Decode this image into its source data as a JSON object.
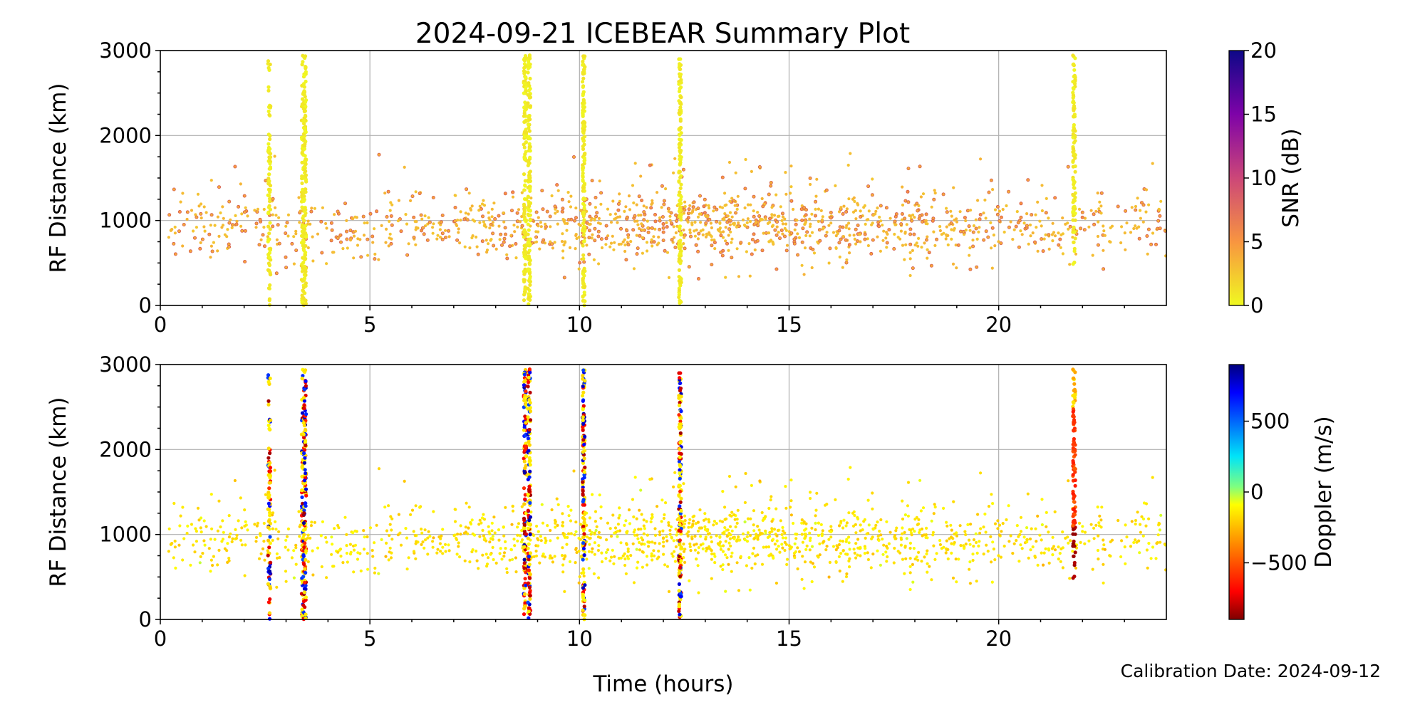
{
  "figure": {
    "title": "2024-09-21 ICEBEAR Summary Plot",
    "footer": "Calibration Date: 2024-09-12"
  },
  "chart_data": [
    {
      "type": "scatter",
      "id": "snr",
      "title": "",
      "xlabel": "",
      "ylabel": "RF Distance (km)",
      "xlim": [
        0,
        24
      ],
      "ylim": [
        0,
        3000
      ],
      "xticks": [
        "0",
        "5",
        "10",
        "15",
        "20"
      ],
      "xtick_values": [
        0,
        5,
        10,
        15,
        20
      ],
      "yticks": [
        "0",
        "1000",
        "2000",
        "3000"
      ],
      "ytick_values": [
        0,
        1000,
        2000,
        3000
      ],
      "grid": true,
      "color_variable": {
        "label": "SNR (dB)",
        "range": [
          0,
          20
        ],
        "ticks": [
          "0",
          "5",
          "10",
          "15",
          "20"
        ],
        "tick_values": [
          0,
          5,
          10,
          15,
          20
        ],
        "colormap": "plasma_r"
      },
      "vertical_bursts_hours": [
        2.6,
        3.4,
        3.45,
        8.7,
        8.8,
        10.1,
        12.4,
        21.8
      ],
      "background_scatter": {
        "x_range": [
          0,
          24
        ],
        "y_range": [
          300,
          2000
        ],
        "typical_color_value": 3
      }
    },
    {
      "type": "scatter",
      "id": "doppler",
      "title": "",
      "xlabel": "Time (hours)",
      "ylabel": "RF Distance (km)",
      "xlim": [
        0,
        24
      ],
      "ylim": [
        0,
        3000
      ],
      "xticks": [
        "0",
        "5",
        "10",
        "15",
        "20"
      ],
      "xtick_values": [
        0,
        5,
        10,
        15,
        20
      ],
      "yticks": [
        "0",
        "1000",
        "2000",
        "3000"
      ],
      "ytick_values": [
        0,
        1000,
        2000,
        3000
      ],
      "grid": true,
      "color_variable": {
        "label": "Doppler (m/s)",
        "range": [
          -900,
          900
        ],
        "ticks": [
          "−500",
          "0",
          "500"
        ],
        "tick_values": [
          -500,
          0,
          500
        ],
        "colormap": "jet_r"
      },
      "vertical_bursts_hours": [
        2.6,
        3.4,
        3.45,
        8.7,
        8.8,
        10.1,
        12.4,
        21.8
      ],
      "background_scatter": {
        "x_range": [
          0,
          24
        ],
        "y_range": [
          300,
          2000
        ],
        "typical_color_value": -150
      }
    }
  ]
}
